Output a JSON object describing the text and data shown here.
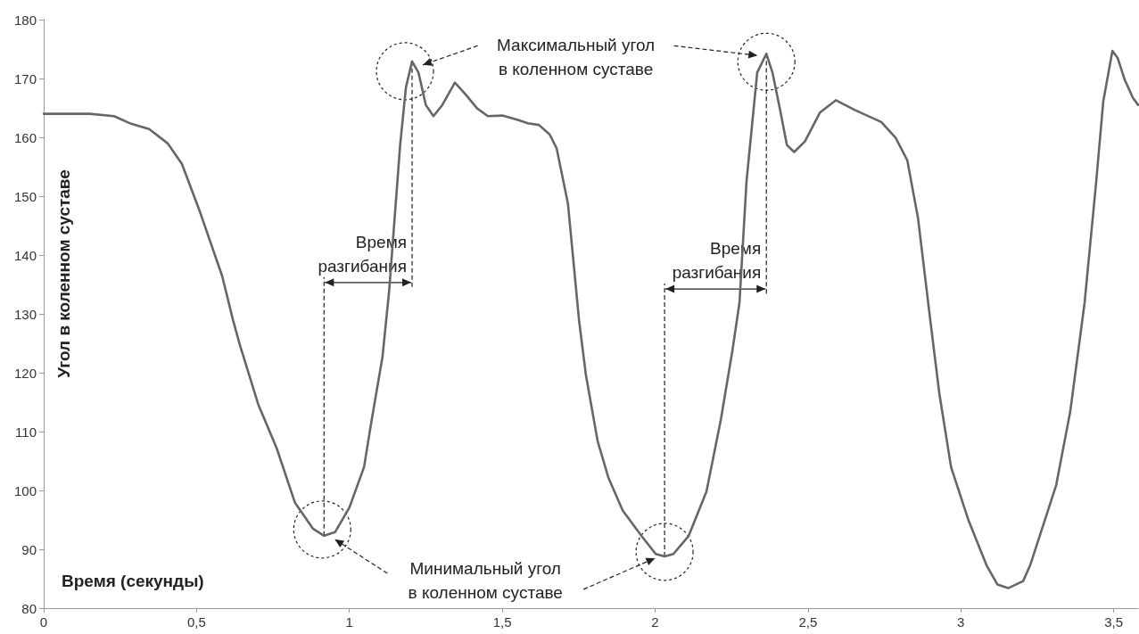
{
  "chart_data": {
    "type": "line",
    "xlabel": "Время (секунды)",
    "ylabel": "Угол в коленном суставе",
    "xlim": [
      0,
      3.58
    ],
    "ylim": [
      80,
      180
    ],
    "xticks": [
      0,
      {
        "value": 0.5,
        "label": "0,5"
      },
      1,
      {
        "value": 1.5,
        "label": "1,5"
      },
      2,
      {
        "value": 2.5,
        "label": "2,5"
      },
      3,
      {
        "value": 3.5,
        "label": "3,5"
      }
    ],
    "yticks": [
      80,
      90,
      100,
      110,
      120,
      130,
      140,
      150,
      160,
      170,
      180
    ],
    "grid": false,
    "marker": "none",
    "line_style": "solid",
    "series": [
      {
        "color": "#666666",
        "x": [
          0,
          0.15,
          0.23,
          0.286,
          0.345,
          0.405,
          0.452,
          0.51,
          0.584,
          0.619,
          0.643,
          0.702,
          0.762,
          0.822,
          0.881,
          0.917,
          0.953,
          1.0,
          1.048,
          1.071,
          1.108,
          1.13,
          1.166,
          1.185,
          1.205,
          1.226,
          1.25,
          1.275,
          1.304,
          1.345,
          1.38,
          1.418,
          1.453,
          1.5,
          1.549,
          1.584,
          1.62,
          1.655,
          1.678,
          1.715,
          1.751,
          1.774,
          1.812,
          1.847,
          1.894,
          1.955,
          2.002,
          2.031,
          2.06,
          2.11,
          2.168,
          2.215,
          2.253,
          2.276,
          2.299,
          2.334,
          2.364,
          2.384,
          2.408,
          2.431,
          2.455,
          2.49,
          2.539,
          2.591,
          2.655,
          2.74,
          2.787,
          2.825,
          2.86,
          2.9,
          2.93,
          2.968,
          3.026,
          3.084,
          3.12,
          3.155,
          3.204,
          3.227,
          3.312,
          3.358,
          3.405,
          3.443,
          3.466,
          3.496,
          3.513,
          3.536,
          3.563,
          3.58
        ],
        "values": [
          164.0,
          164.0,
          163.6,
          162.3,
          161.4,
          159.0,
          155.5,
          147.5,
          136.4,
          129.0,
          124.5,
          114.6,
          107.2,
          97.9,
          93.5,
          92.3,
          92.9,
          97.1,
          104.0,
          111.4,
          122.6,
          133.9,
          158.7,
          168.5,
          172.9,
          171.0,
          165.5,
          163.6,
          165.5,
          169.3,
          167.3,
          164.9,
          163.6,
          163.7,
          163.0,
          162.4,
          162.1,
          160.5,
          158.1,
          148.7,
          129.0,
          119.5,
          108.4,
          102.2,
          96.6,
          92.3,
          89.2,
          88.8,
          89.2,
          92.3,
          99.8,
          112.0,
          123.8,
          131.9,
          152.5,
          171.0,
          174.2,
          171.0,
          164.9,
          158.7,
          157.5,
          159.3,
          164.2,
          166.3,
          164.6,
          162.6,
          159.9,
          156.1,
          146.3,
          129.0,
          116.4,
          104.0,
          94.8,
          87.3,
          84.0,
          83.4,
          84.6,
          87.3,
          100.9,
          113.4,
          131.9,
          152.5,
          166.1,
          174.7,
          173.5,
          169.8,
          166.7,
          165.5
        ]
      }
    ],
    "annotations": [
      "Максимальный угол\nв коленном суставе",
      {
        "text": "Минимальный угол\nв коленном суставе",
        "x": 2.0,
        "y": 88.5
      },
      "Время\nразгибания",
      "Время\nразгибания"
    ]
  }
}
